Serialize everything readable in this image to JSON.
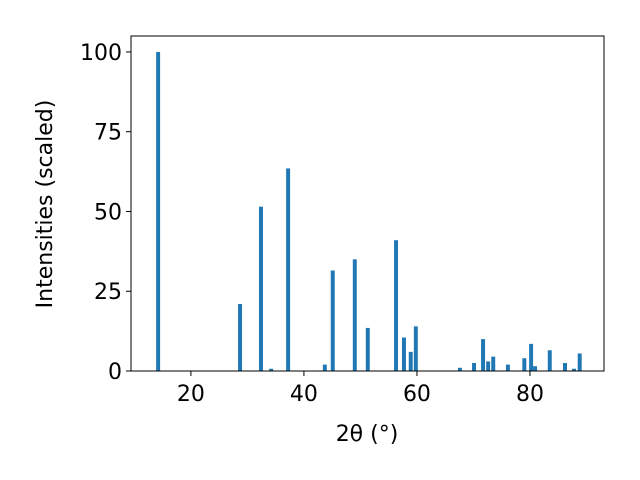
{
  "chart_data": {
    "type": "bar",
    "x_label": "2θ (°)",
    "y_label": "Intensities (scaled)",
    "color": "#1f77b4",
    "bar_width": 0.7,
    "x": [
      14.2,
      28.7,
      32.4,
      34.2,
      37.2,
      43.7,
      45.1,
      49.0,
      51.3,
      56.3,
      57.7,
      58.9,
      59.8,
      67.6,
      70.1,
      71.7,
      72.6,
      73.5,
      76.1,
      79.0,
      80.2,
      80.9,
      83.5,
      86.2,
      87.8,
      88.8
    ],
    "values": [
      100,
      21,
      51.5,
      0.7,
      63.5,
      2,
      31.5,
      35,
      13.5,
      41,
      10.5,
      6,
      14,
      1,
      2.5,
      10,
      3,
      4.5,
      2,
      4,
      8.5,
      1.5,
      6.5,
      2.5,
      0.7,
      5.5
    ],
    "xlim": [
      9.4,
      93.1
    ],
    "ylim": [
      0,
      105
    ],
    "xticks": [
      20,
      40,
      60,
      80
    ],
    "yticks": [
      0,
      25,
      50,
      75,
      100
    ],
    "grid": false
  }
}
